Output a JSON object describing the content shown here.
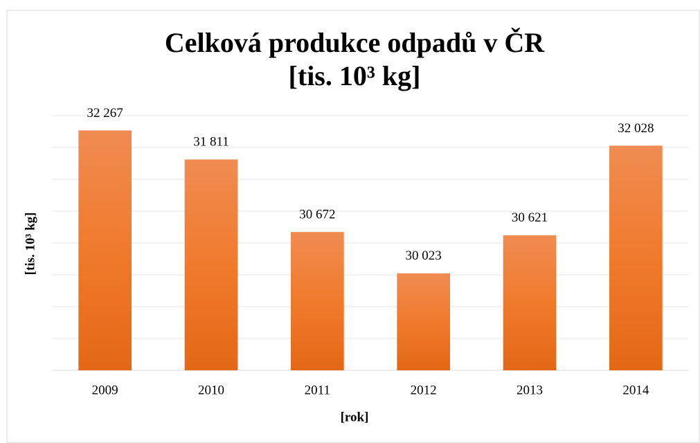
{
  "chart_data": {
    "type": "bar",
    "title": [
      "Celková produkce odpadů v ČR",
      "[tis. 10³ kg]"
    ],
    "x_label": "[rok]",
    "y_label": "[tis. 10³ kg]",
    "categories": [
      "2009",
      "2010",
      "2011",
      "2012",
      "2013",
      "2014"
    ],
    "values": [
      32267,
      31811,
      30672,
      30023,
      30621,
      32028
    ],
    "value_labels": [
      "32 267",
      "31 811",
      "30 672",
      "30 023",
      "30 621",
      "32 028"
    ],
    "color": "#ef7a2e",
    "ylim": [
      28500,
      32500
    ],
    "yticks": [
      28500,
      29000,
      29500,
      30000,
      30500,
      31000,
      31500,
      32000,
      32500
    ],
    "grid": true
  }
}
